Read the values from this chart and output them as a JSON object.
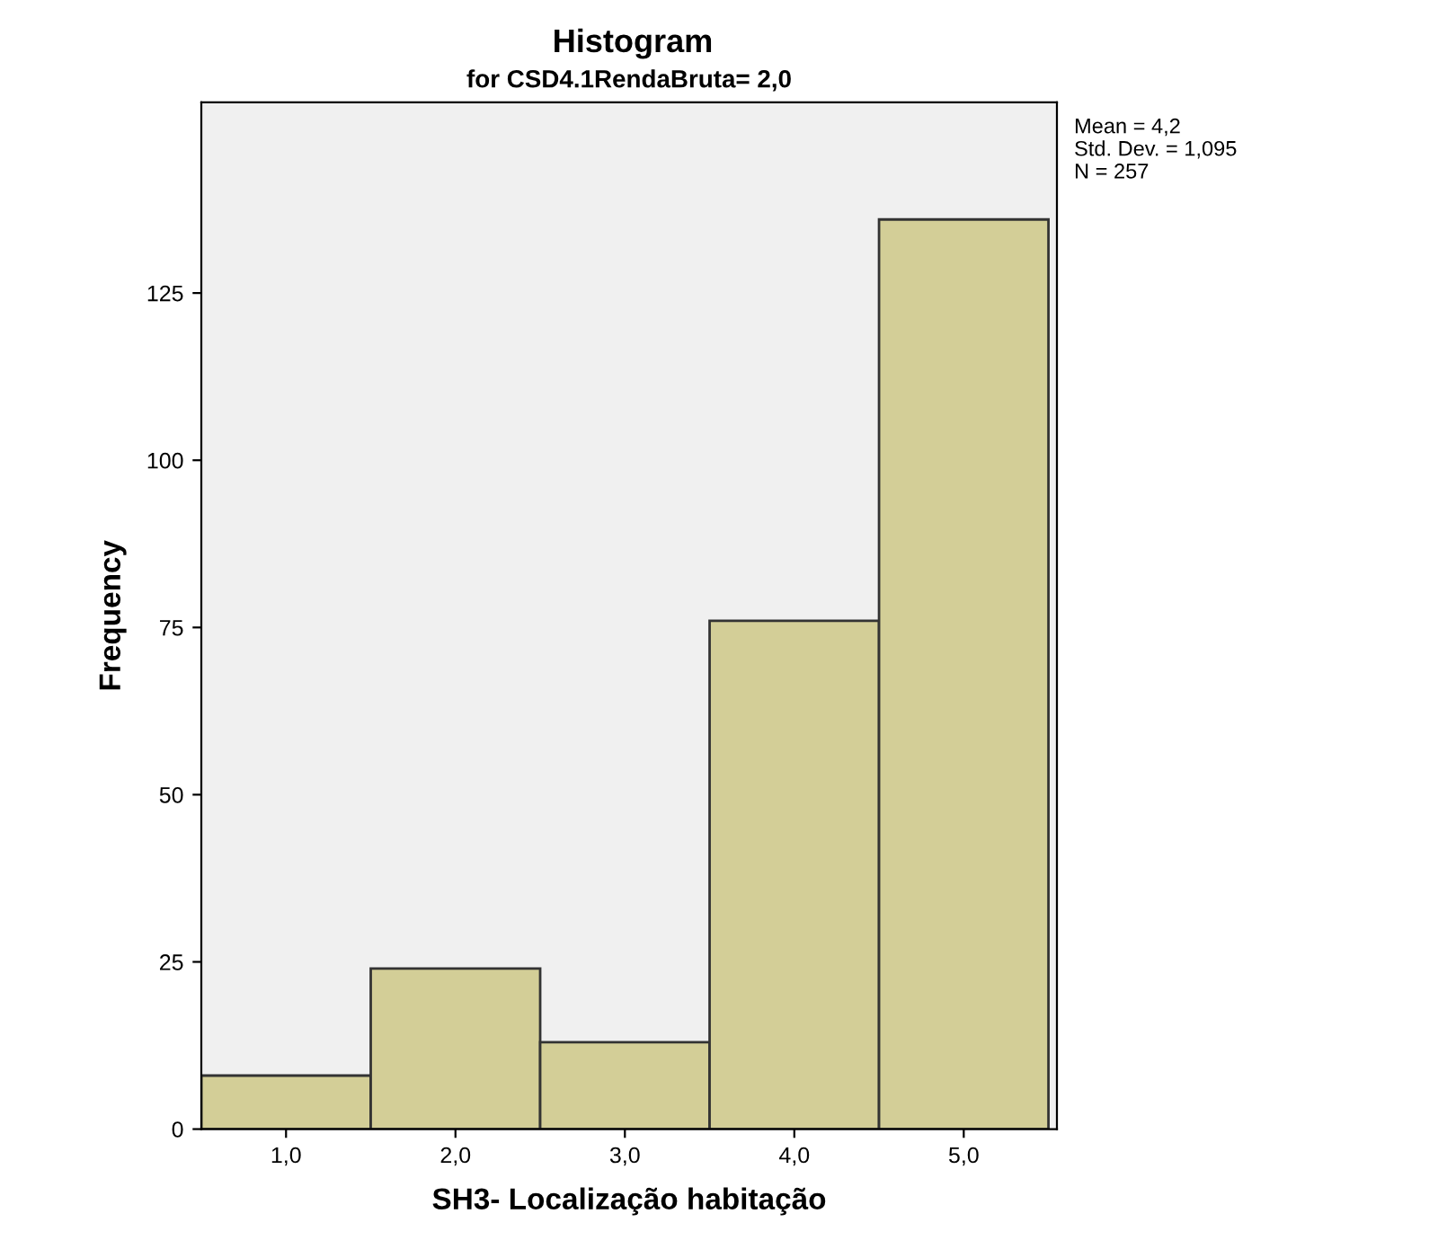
{
  "chart_data": {
    "type": "histogram",
    "title": "Histogram",
    "subtitle": "for CSD4.1RendaBruta= 2,0",
    "xlabel": "SH3- Localização habitação",
    "ylabel": "Frequency",
    "bins": [
      0.5,
      1.5,
      2.5,
      3.5,
      4.5,
      5.5
    ],
    "values": [
      8,
      24,
      13,
      76,
      136
    ],
    "color": "#d3ce97",
    "xlim": [
      0.5,
      5.55
    ],
    "xticks": [
      {
        "value": 1,
        "label": "1,0"
      },
      {
        "value": 2,
        "label": "2,0"
      },
      {
        "value": 3,
        "label": "3,0"
      },
      {
        "value": 4,
        "label": "4,0"
      },
      {
        "value": 5,
        "label": "5,0"
      }
    ],
    "ylim": [
      0,
      153.5
    ],
    "yticks": [
      0,
      25,
      50,
      75,
      100,
      125
    ],
    "annotations": [
      "Mean = 4,2",
      "Std. Dev. = 1,095",
      "N = 257"
    ]
  }
}
